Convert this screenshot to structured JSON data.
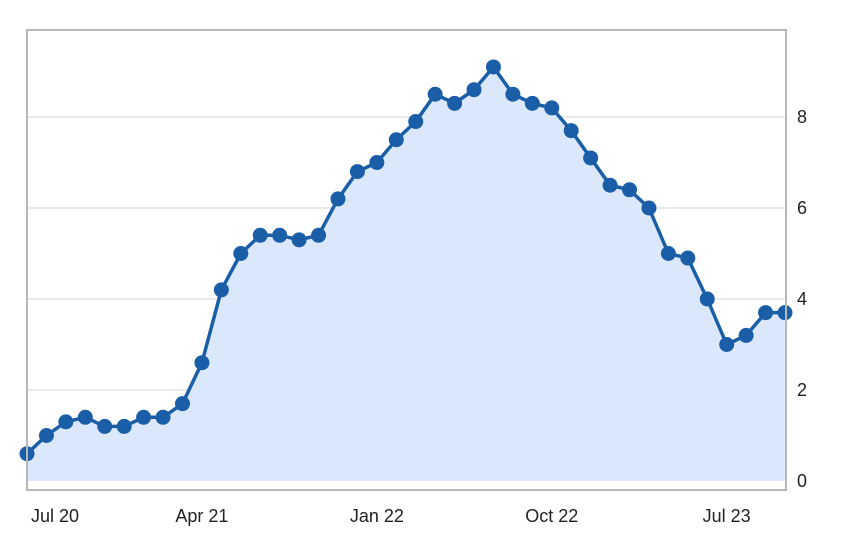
{
  "chart_data": {
    "type": "area",
    "title": "",
    "xlabel": "",
    "ylabel": "",
    "x": [
      "2020-07",
      "2020-08",
      "2020-09",
      "2020-10",
      "2020-11",
      "2020-12",
      "2021-01",
      "2021-02",
      "2021-03",
      "2021-04",
      "2021-05",
      "2021-06",
      "2021-07",
      "2021-08",
      "2021-09",
      "2021-10",
      "2021-11",
      "2021-12",
      "2022-01",
      "2022-02",
      "2022-03",
      "2022-04",
      "2022-05",
      "2022-06",
      "2022-07",
      "2022-08",
      "2022-09",
      "2022-10",
      "2022-11",
      "2022-12",
      "2023-01",
      "2023-02",
      "2023-03",
      "2023-04",
      "2023-05",
      "2023-06",
      "2023-07",
      "2023-08",
      "2023-09",
      "2023-10"
    ],
    "series": [
      {
        "values": [
          0.6,
          1.0,
          1.3,
          1.4,
          1.2,
          1.2,
          1.4,
          1.4,
          1.7,
          2.6,
          4.2,
          5.0,
          5.4,
          5.4,
          5.3,
          5.4,
          6.2,
          6.8,
          7.0,
          7.5,
          7.9,
          8.5,
          8.3,
          8.6,
          9.1,
          8.5,
          8.3,
          8.2,
          7.7,
          7.1,
          6.5,
          6.4,
          6.0,
          5.0,
          4.9,
          4.0,
          3.0,
          3.2,
          3.7,
          3.7
        ]
      }
    ],
    "x_tick_labels": [
      "Jul 20",
      "Apr 21",
      "Jan 22",
      "Oct 22",
      "Jul 23"
    ],
    "x_tick_indices": [
      0,
      9,
      18,
      27,
      36
    ],
    "y_ticks": [
      0,
      2,
      4,
      6,
      8
    ],
    "y_tick_labels": [
      "0",
      "2",
      "4",
      "6",
      "8"
    ],
    "ylim": [
      0,
      10
    ],
    "y_axis_position": "right",
    "grid": true,
    "legend": "none",
    "colors": {
      "line": "#1a5ea8",
      "marker": "#1a5ea8",
      "area_fill": "#dbe8fb",
      "gridline": "#e3e3e3",
      "frame": "#b7b7b7"
    }
  }
}
